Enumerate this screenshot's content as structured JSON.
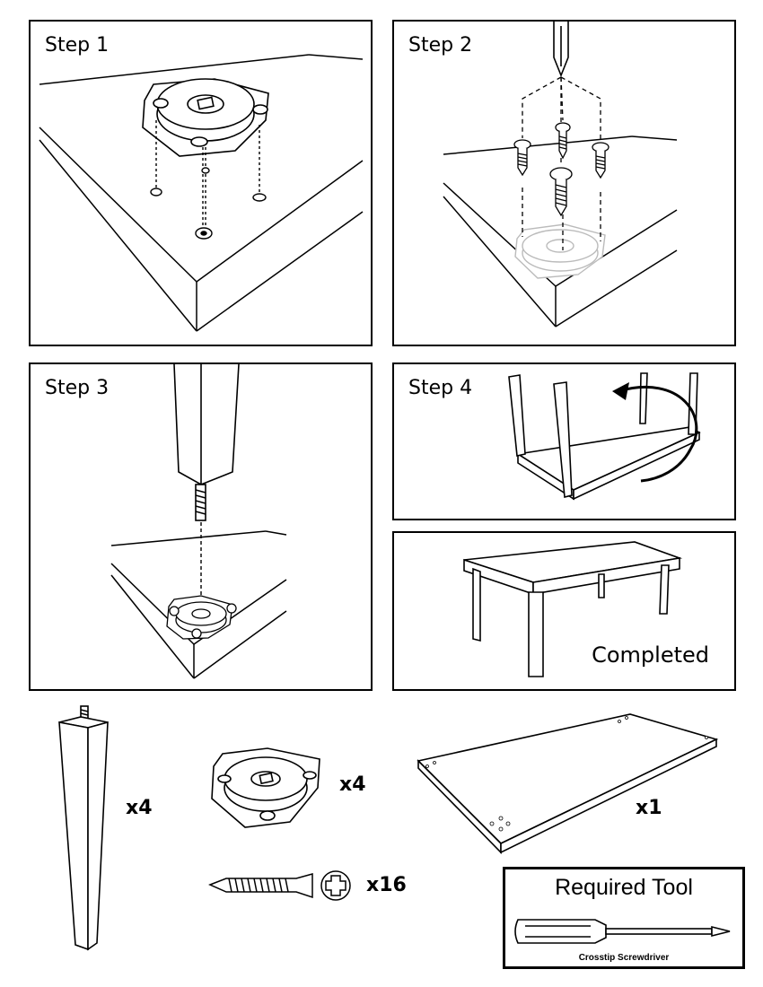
{
  "steps": [
    {
      "label": "Step 1"
    },
    {
      "label": "Step 2"
    },
    {
      "label": "Step 3"
    },
    {
      "label": "Step 4"
    }
  ],
  "completed_label": "Completed",
  "parts": {
    "leg_qty": "x4",
    "plate_qty": "x4",
    "screw_qty": "x16",
    "tabletop_qty": "x1"
  },
  "tool": {
    "title": "Required Tool",
    "name": "Crosstip Screwdriver"
  }
}
